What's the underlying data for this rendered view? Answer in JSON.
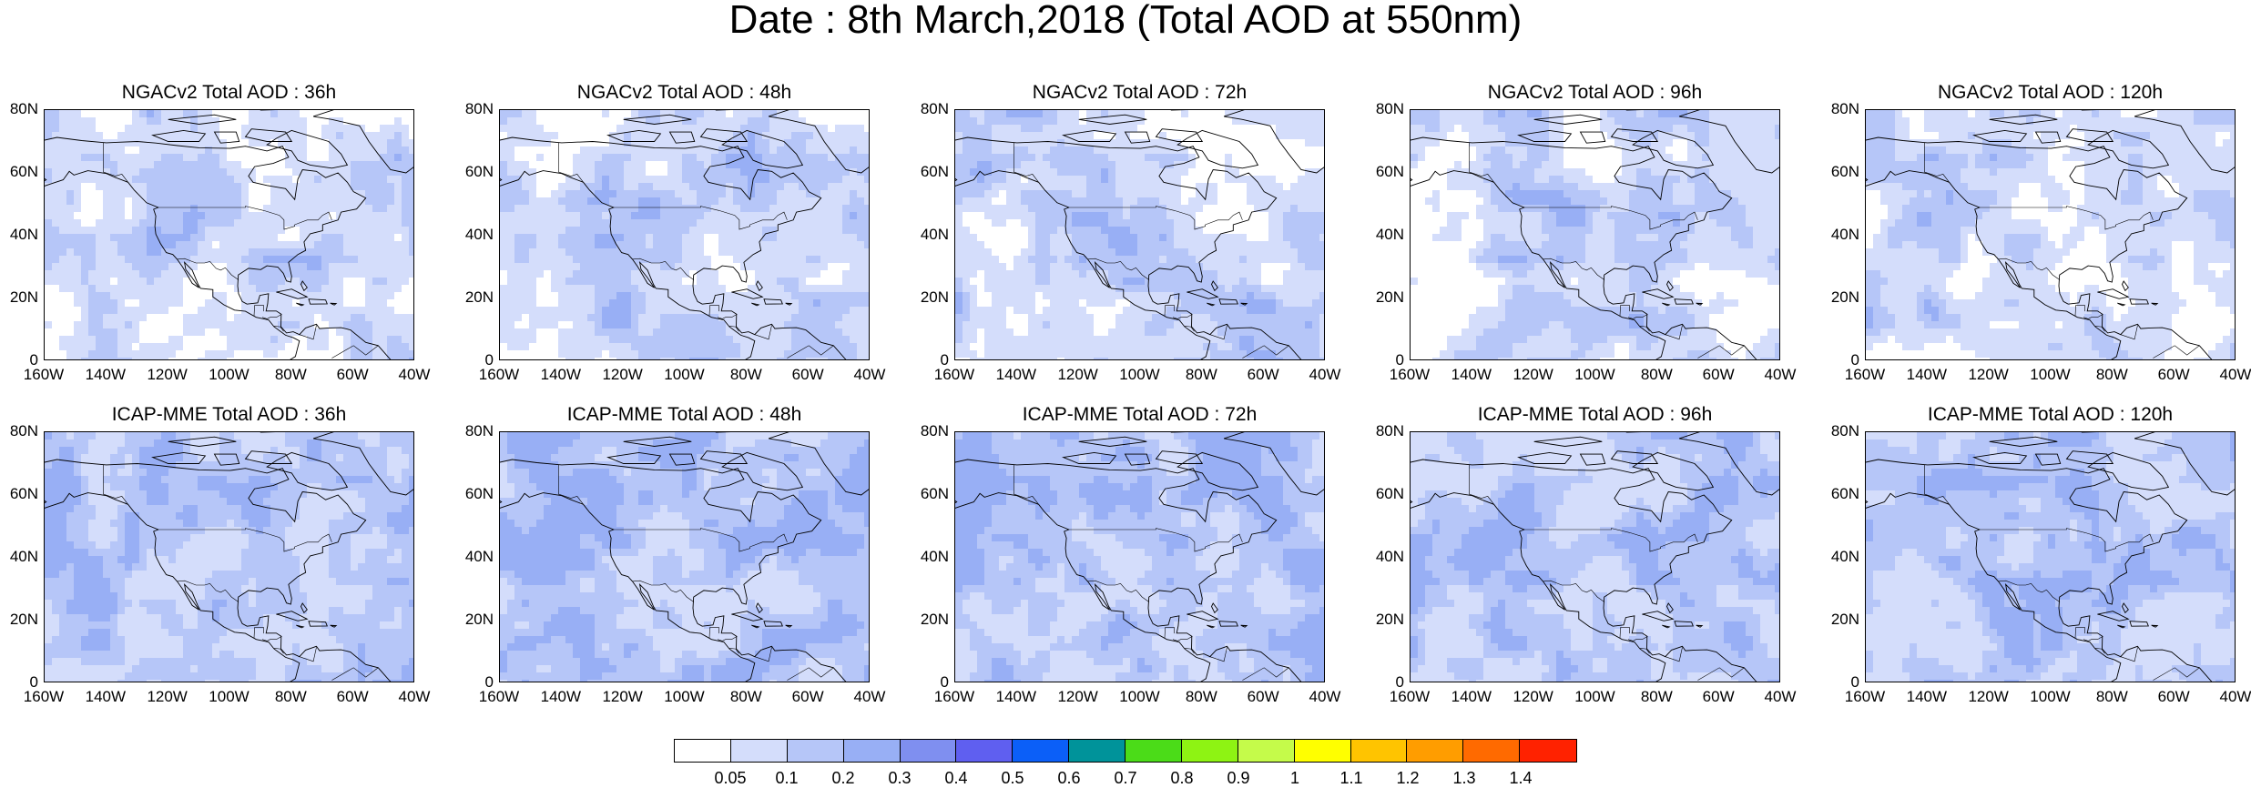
{
  "title": "Date : 8th March,2018 (Total AOD at 550nm)",
  "panels": [
    {
      "title": "NGACv2 Total AOD : 36h",
      "model": "NGACv2",
      "forecast_hour": 36
    },
    {
      "title": "NGACv2 Total AOD : 48h",
      "model": "NGACv2",
      "forecast_hour": 48
    },
    {
      "title": "NGACv2 Total AOD : 72h",
      "model": "NGACv2",
      "forecast_hour": 72
    },
    {
      "title": "NGACv2 Total AOD : 96h",
      "model": "NGACv2",
      "forecast_hour": 96
    },
    {
      "title": "NGACv2 Total AOD : 120h",
      "model": "NGACv2",
      "forecast_hour": 120
    },
    {
      "title": "ICAP-MME Total AOD : 36h",
      "model": "ICAP-MME",
      "forecast_hour": 36
    },
    {
      "title": "ICAP-MME Total AOD : 48h",
      "model": "ICAP-MME",
      "forecast_hour": 48
    },
    {
      "title": "ICAP-MME Total AOD : 72h",
      "model": "ICAP-MME",
      "forecast_hour": 72
    },
    {
      "title": "ICAP-MME Total AOD : 96h",
      "model": "ICAP-MME",
      "forecast_hour": 96
    },
    {
      "title": "ICAP-MME Total AOD : 120h",
      "model": "ICAP-MME",
      "forecast_hour": 120
    }
  ],
  "lat_labels": [
    "80N",
    "60N",
    "40N",
    "20N",
    "0"
  ],
  "lon_labels": [
    "160W",
    "140W",
    "120W",
    "100W",
    "80W",
    "60W",
    "40W"
  ],
  "colorbar": {
    "labels": [
      "0.05",
      "0.1",
      "0.2",
      "0.3",
      "0.4",
      "0.5",
      "0.6",
      "0.7",
      "0.8",
      "0.9",
      "1",
      "1.1",
      "1.2",
      "1.3",
      "1.4"
    ],
    "colors": [
      "#ffffff",
      "#d4ddfb",
      "#b6c6f8",
      "#98aff5",
      "#7f8ff0",
      "#5f5ff0",
      "#0b5ff8",
      "#00939a",
      "#4bdc18",
      "#8ef313",
      "#c5fb4a",
      "#ffff00",
      "#ffc400",
      "#ff9d00",
      "#ff6a00",
      "#ff2200"
    ]
  }
}
